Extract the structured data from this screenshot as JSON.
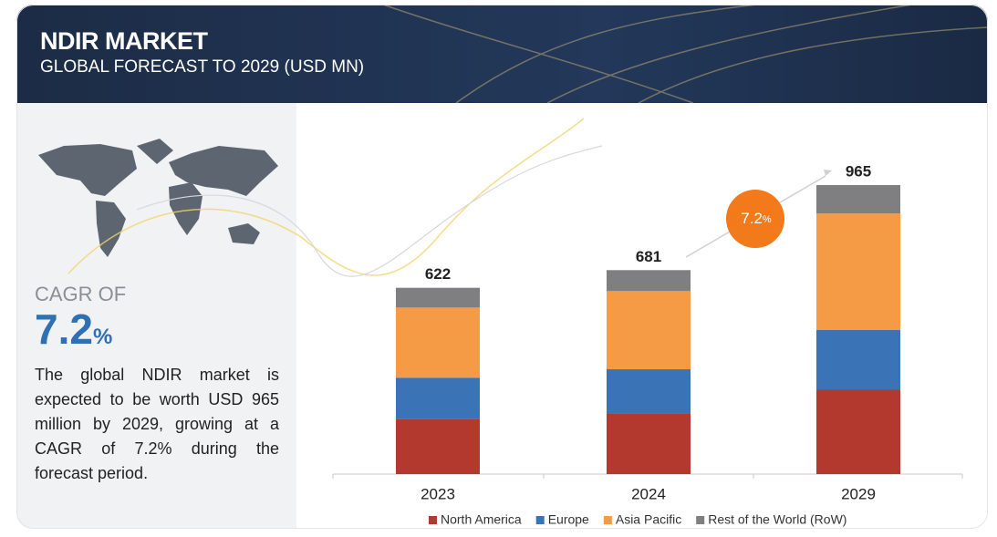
{
  "chart_data": {
    "type": "stacked_bar",
    "title": "NDIR MARKET",
    "subtitle": "GLOBAL FORECAST TO 2029 (USD MN)",
    "cagr_label": "CAGR OF",
    "cagr_value": "7.2",
    "cagr_unit": "%",
    "description": "The global NDIR market is expected to be worth USD 965 million by 2029, growing at a CAGR of 7.2% during the forecast period.",
    "categories": [
      "2023",
      "2024",
      "2029"
    ],
    "totals": [
      622,
      681,
      965
    ],
    "series": [
      {
        "name": "North America",
        "color": "#b3392f",
        "values": [
          185,
          201,
          283
        ]
      },
      {
        "name": "Europe",
        "color": "#3b74b6",
        "values": [
          137,
          149,
          198
        ]
      },
      {
        "name": "Asia Pacific",
        "color": "#f59a45",
        "values": [
          234,
          261,
          389
        ]
      },
      {
        "name": "Rest of the World (RoW)",
        "color": "#7f7f81",
        "values": [
          66,
          70,
          95
        ]
      }
    ]
  }
}
